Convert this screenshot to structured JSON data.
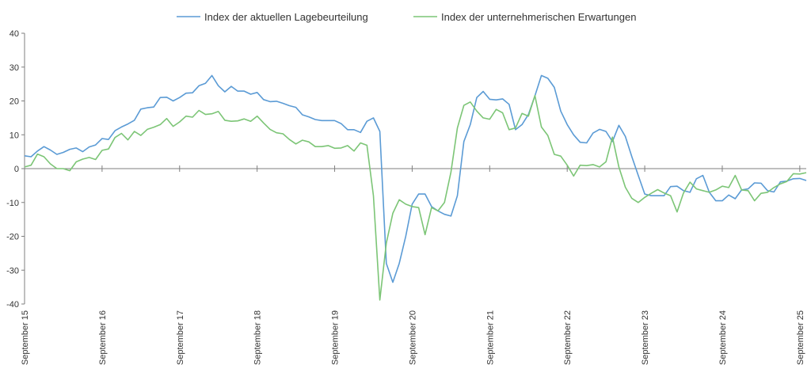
{
  "chart_data": {
    "type": "line",
    "title": "",
    "xlabel": "",
    "ylabel": "",
    "ylim": [
      -40,
      40
    ],
    "yticks": [
      -40,
      -30,
      -20,
      -10,
      0,
      10,
      20,
      30,
      40
    ],
    "grid": false,
    "legend_position": "top",
    "x_tick_labels": [
      "September 15",
      "September 16",
      "September 17",
      "September 18",
      "September 19",
      "September 20",
      "September 21",
      "September 22",
      "September 23",
      "September 24",
      "September 25"
    ],
    "series": [
      {
        "name": "Index der aktuellen Lagebeurteilung",
        "color": "#5b9bd5",
        "values": [
          3.8,
          3.5,
          5.2,
          6.5,
          5.5,
          4.2,
          4.8,
          5.7,
          6.1,
          5.0,
          6.4,
          7.0,
          8.9,
          8.6,
          11.2,
          12.3,
          13.2,
          14.3,
          17.6,
          18.0,
          18.2,
          21.0,
          21.1,
          20.0,
          21.0,
          22.3,
          22.4,
          24.5,
          25.2,
          27.5,
          24.5,
          22.7,
          24.3,
          22.9,
          22.9,
          22.0,
          22.5,
          20.4,
          19.8,
          19.9,
          19.3,
          18.6,
          18.1,
          15.9,
          15.3,
          14.5,
          14.2,
          14.2,
          14.2,
          13.3,
          11.5,
          11.5,
          10.7,
          14.0,
          15.0,
          11.0,
          -28.0,
          -33.6,
          -28.0,
          -20.0,
          -10.5,
          -7.5,
          -7.5,
          -11.2,
          -12.5,
          -13.5,
          -14.0,
          -8.0,
          8.0,
          13.0,
          21.0,
          22.8,
          20.5,
          20.3,
          20.6,
          19.0,
          11.5,
          13.0,
          16.0,
          21.5,
          27.5,
          26.7,
          24.0,
          17.0,
          13.0,
          10.0,
          7.8,
          7.6,
          10.5,
          11.6,
          11.0,
          8.0,
          12.8,
          9.5,
          3.5,
          -2.0,
          -7.5,
          -8.0,
          -8.0,
          -8.0,
          -5.3,
          -5.2,
          -6.5,
          -7.0,
          -3.0,
          -2.0,
          -7.0,
          -9.5,
          -9.5,
          -7.8,
          -8.9,
          -6.3,
          -6.0,
          -4.2,
          -4.3,
          -6.5,
          -6.9,
          -3.9,
          -3.7,
          -3.0,
          -2.9,
          -3.5
        ]
      },
      {
        "name": "Index der unternehmerischen Erwartungen",
        "color": "#7cc576",
        "values": [
          0.5,
          1.0,
          4.3,
          3.5,
          1.4,
          0.0,
          0.0,
          -0.6,
          2.0,
          2.8,
          3.3,
          2.7,
          5.4,
          5.8,
          9.2,
          10.4,
          8.5,
          11.0,
          9.8,
          11.6,
          12.2,
          13.0,
          14.8,
          12.5,
          13.8,
          15.5,
          15.2,
          17.2,
          16.0,
          16.2,
          16.9,
          14.3,
          14.0,
          14.1,
          14.7,
          14.0,
          15.5,
          13.5,
          11.6,
          10.6,
          10.3,
          8.6,
          7.3,
          8.4,
          7.9,
          6.5,
          6.5,
          6.8,
          6.0,
          6.1,
          6.8,
          5.2,
          7.6,
          6.9,
          -8.0,
          -38.8,
          -22.0,
          -13.2,
          -9.2,
          -10.5,
          -11.2,
          -11.5,
          -19.5,
          -11.5,
          -12.5,
          -10.0,
          -1.0,
          12.0,
          18.7,
          19.7,
          17.0,
          15.0,
          14.6,
          17.5,
          16.5,
          11.5,
          12.0,
          16.3,
          15.5,
          21.6,
          12.3,
          9.8,
          4.2,
          3.7,
          1.0,
          -2.2,
          1.0,
          0.9,
          1.2,
          0.5,
          2.0,
          9.3,
          0.5,
          -5.5,
          -8.8,
          -10.0,
          -8.5,
          -7.3,
          -6.2,
          -7.2,
          -8.0,
          -12.8,
          -7.2,
          -4.0,
          -6.0,
          -6.5,
          -7.0,
          -6.3,
          -5.2,
          -5.6,
          -2.0,
          -6.3,
          -6.5,
          -9.5,
          -7.3,
          -7.0,
          -5.6,
          -4.5,
          -3.8,
          -1.5,
          -1.6,
          -1.2
        ]
      }
    ]
  }
}
